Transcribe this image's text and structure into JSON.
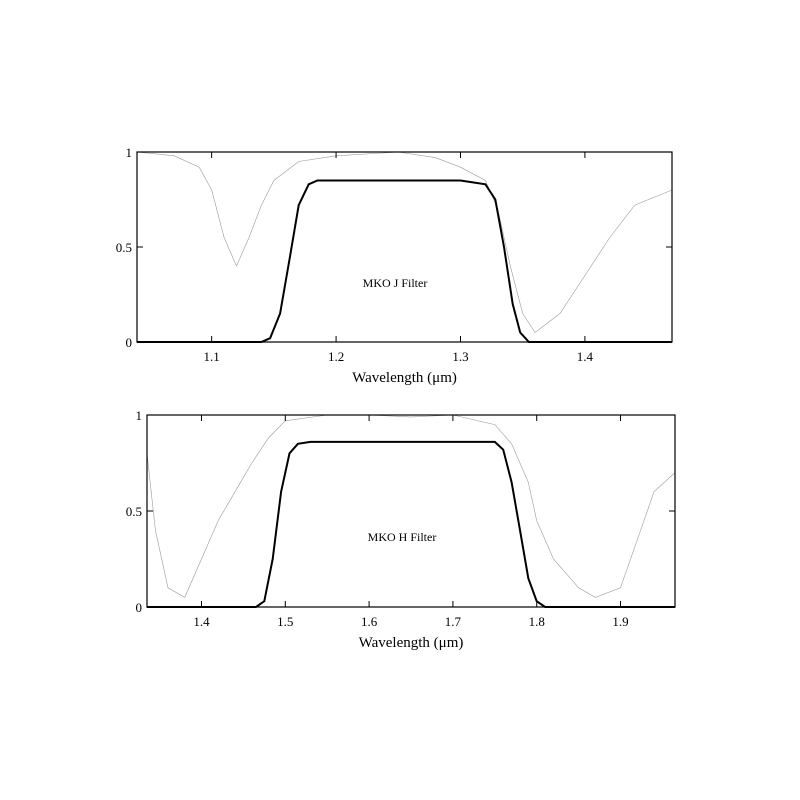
{
  "chart_data": [
    {
      "type": "line",
      "xlabel": "Wavelength (μm)",
      "annotation": "MKO J Filter",
      "xlim": [
        1.04,
        1.47
      ],
      "ylim": [
        0,
        1
      ],
      "xticks": [
        "1.1",
        "1.2",
        "1.3",
        "1.4"
      ],
      "yticks": [
        "0",
        "0.5",
        "1"
      ],
      "grid": false,
      "colors": {
        "filter": "#000000",
        "atmosphere": "#8a8a8a"
      },
      "series": [
        {
          "x": [
            1.04,
            1.14,
            1.147,
            1.155,
            1.163,
            1.17,
            1.178,
            1.185,
            1.2,
            1.25,
            1.3,
            1.32,
            1.328,
            1.335,
            1.342,
            1.348,
            1.355,
            1.47
          ],
          "values": [
            0,
            0,
            0.02,
            0.15,
            0.45,
            0.72,
            0.83,
            0.85,
            0.85,
            0.85,
            0.85,
            0.83,
            0.75,
            0.5,
            0.2,
            0.05,
            0,
            0
          ]
        },
        {
          "x": [
            1.04,
            1.07,
            1.09,
            1.1,
            1.11,
            1.12,
            1.13,
            1.14,
            1.15,
            1.17,
            1.2,
            1.25,
            1.28,
            1.3,
            1.32,
            1.33,
            1.34,
            1.35,
            1.36,
            1.38,
            1.4,
            1.42,
            1.44,
            1.47
          ],
          "values": [
            1,
            0.98,
            0.92,
            0.8,
            0.55,
            0.4,
            0.55,
            0.72,
            0.85,
            0.95,
            0.98,
            1,
            0.97,
            0.92,
            0.85,
            0.7,
            0.4,
            0.15,
            0.05,
            0.15,
            0.35,
            0.55,
            0.72,
            0.8
          ]
        }
      ]
    },
    {
      "type": "line",
      "xlabel": "Wavelength (μm)",
      "annotation": "MKO H Filter",
      "xlim": [
        1.335,
        1.965
      ],
      "ylim": [
        0,
        1
      ],
      "xticks": [
        "1.4",
        "1.5",
        "1.6",
        "1.7",
        "1.8",
        "1.9"
      ],
      "yticks": [
        "0",
        "0.5",
        "1"
      ],
      "grid": false,
      "colors": {
        "filter": "#000000",
        "atmosphere": "#8a8a8a"
      },
      "series": [
        {
          "x": [
            1.335,
            1.465,
            1.475,
            1.485,
            1.495,
            1.505,
            1.515,
            1.53,
            1.6,
            1.7,
            1.75,
            1.76,
            1.77,
            1.78,
            1.79,
            1.8,
            1.81,
            1.965
          ],
          "values": [
            0,
            0,
            0.03,
            0.25,
            0.6,
            0.8,
            0.85,
            0.86,
            0.86,
            0.86,
            0.86,
            0.82,
            0.65,
            0.4,
            0.15,
            0.03,
            0,
            0
          ]
        },
        {
          "x": [
            1.335,
            1.345,
            1.36,
            1.38,
            1.4,
            1.42,
            1.44,
            1.46,
            1.48,
            1.5,
            1.55,
            1.6,
            1.65,
            1.7,
            1.75,
            1.77,
            1.79,
            1.8,
            1.82,
            1.85,
            1.87,
            1.9,
            1.92,
            1.94,
            1.965
          ],
          "values": [
            0.8,
            0.4,
            0.1,
            0.05,
            0.25,
            0.45,
            0.6,
            0.75,
            0.88,
            0.97,
            1,
            1,
            0.99,
            1,
            0.95,
            0.85,
            0.65,
            0.45,
            0.25,
            0.1,
            0.05,
            0.1,
            0.35,
            0.6,
            0.7
          ]
        }
      ]
    }
  ]
}
